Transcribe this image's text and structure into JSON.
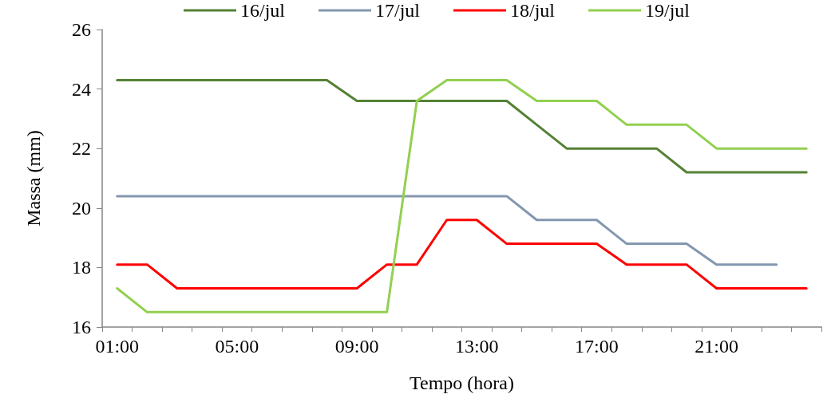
{
  "chart_data": {
    "type": "line",
    "xlabel": "Tempo (hora)",
    "ylabel": "Massa (mm)",
    "categories": [
      "01:00",
      null,
      null,
      null,
      "05:00",
      null,
      null,
      null,
      "09:00",
      null,
      null,
      null,
      "13:00",
      null,
      null,
      null,
      "17:00",
      null,
      null,
      null,
      "21:00",
      null,
      null,
      null
    ],
    "series": [
      {
        "name": "16/jul",
        "color": "#548235",
        "values": [
          24.3,
          24.3,
          24.3,
          24.3,
          24.3,
          24.3,
          24.3,
          24.3,
          23.6,
          23.6,
          23.6,
          23.6,
          23.6,
          23.6,
          22.8,
          22.0,
          22.0,
          22.0,
          22.0,
          21.2,
          21.2,
          21.2,
          21.2,
          21.2
        ]
      },
      {
        "name": "17/jul",
        "color": "#8497b0",
        "values": [
          20.4,
          20.4,
          20.4,
          20.4,
          20.4,
          20.4,
          20.4,
          20.4,
          20.4,
          20.4,
          20.4,
          20.4,
          20.4,
          20.4,
          19.6,
          19.6,
          19.6,
          18.8,
          18.8,
          18.8,
          18.1,
          18.1,
          18.1,
          null
        ]
      },
      {
        "name": "18/jul",
        "color": "#ff0000",
        "values": [
          18.1,
          18.1,
          17.3,
          17.3,
          17.3,
          17.3,
          17.3,
          17.3,
          17.3,
          18.1,
          18.1,
          19.6,
          19.6,
          18.8,
          18.8,
          18.8,
          18.8,
          18.1,
          18.1,
          18.1,
          17.3,
          17.3,
          17.3,
          17.3
        ]
      },
      {
        "name": "19/jul",
        "color": "#92d050",
        "values": [
          17.3,
          16.5,
          16.5,
          16.5,
          16.5,
          16.5,
          16.5,
          16.5,
          16.5,
          16.5,
          23.6,
          24.3,
          24.3,
          24.3,
          23.6,
          23.6,
          23.6,
          22.8,
          22.8,
          22.8,
          22.0,
          22.0,
          22.0,
          22.0
        ]
      }
    ],
    "ylim": [
      16,
      26
    ],
    "yticks": [
      16,
      18,
      20,
      22,
      24,
      26
    ],
    "grid": false,
    "legend": "top",
    "marker": "none",
    "line_style": "solid"
  }
}
